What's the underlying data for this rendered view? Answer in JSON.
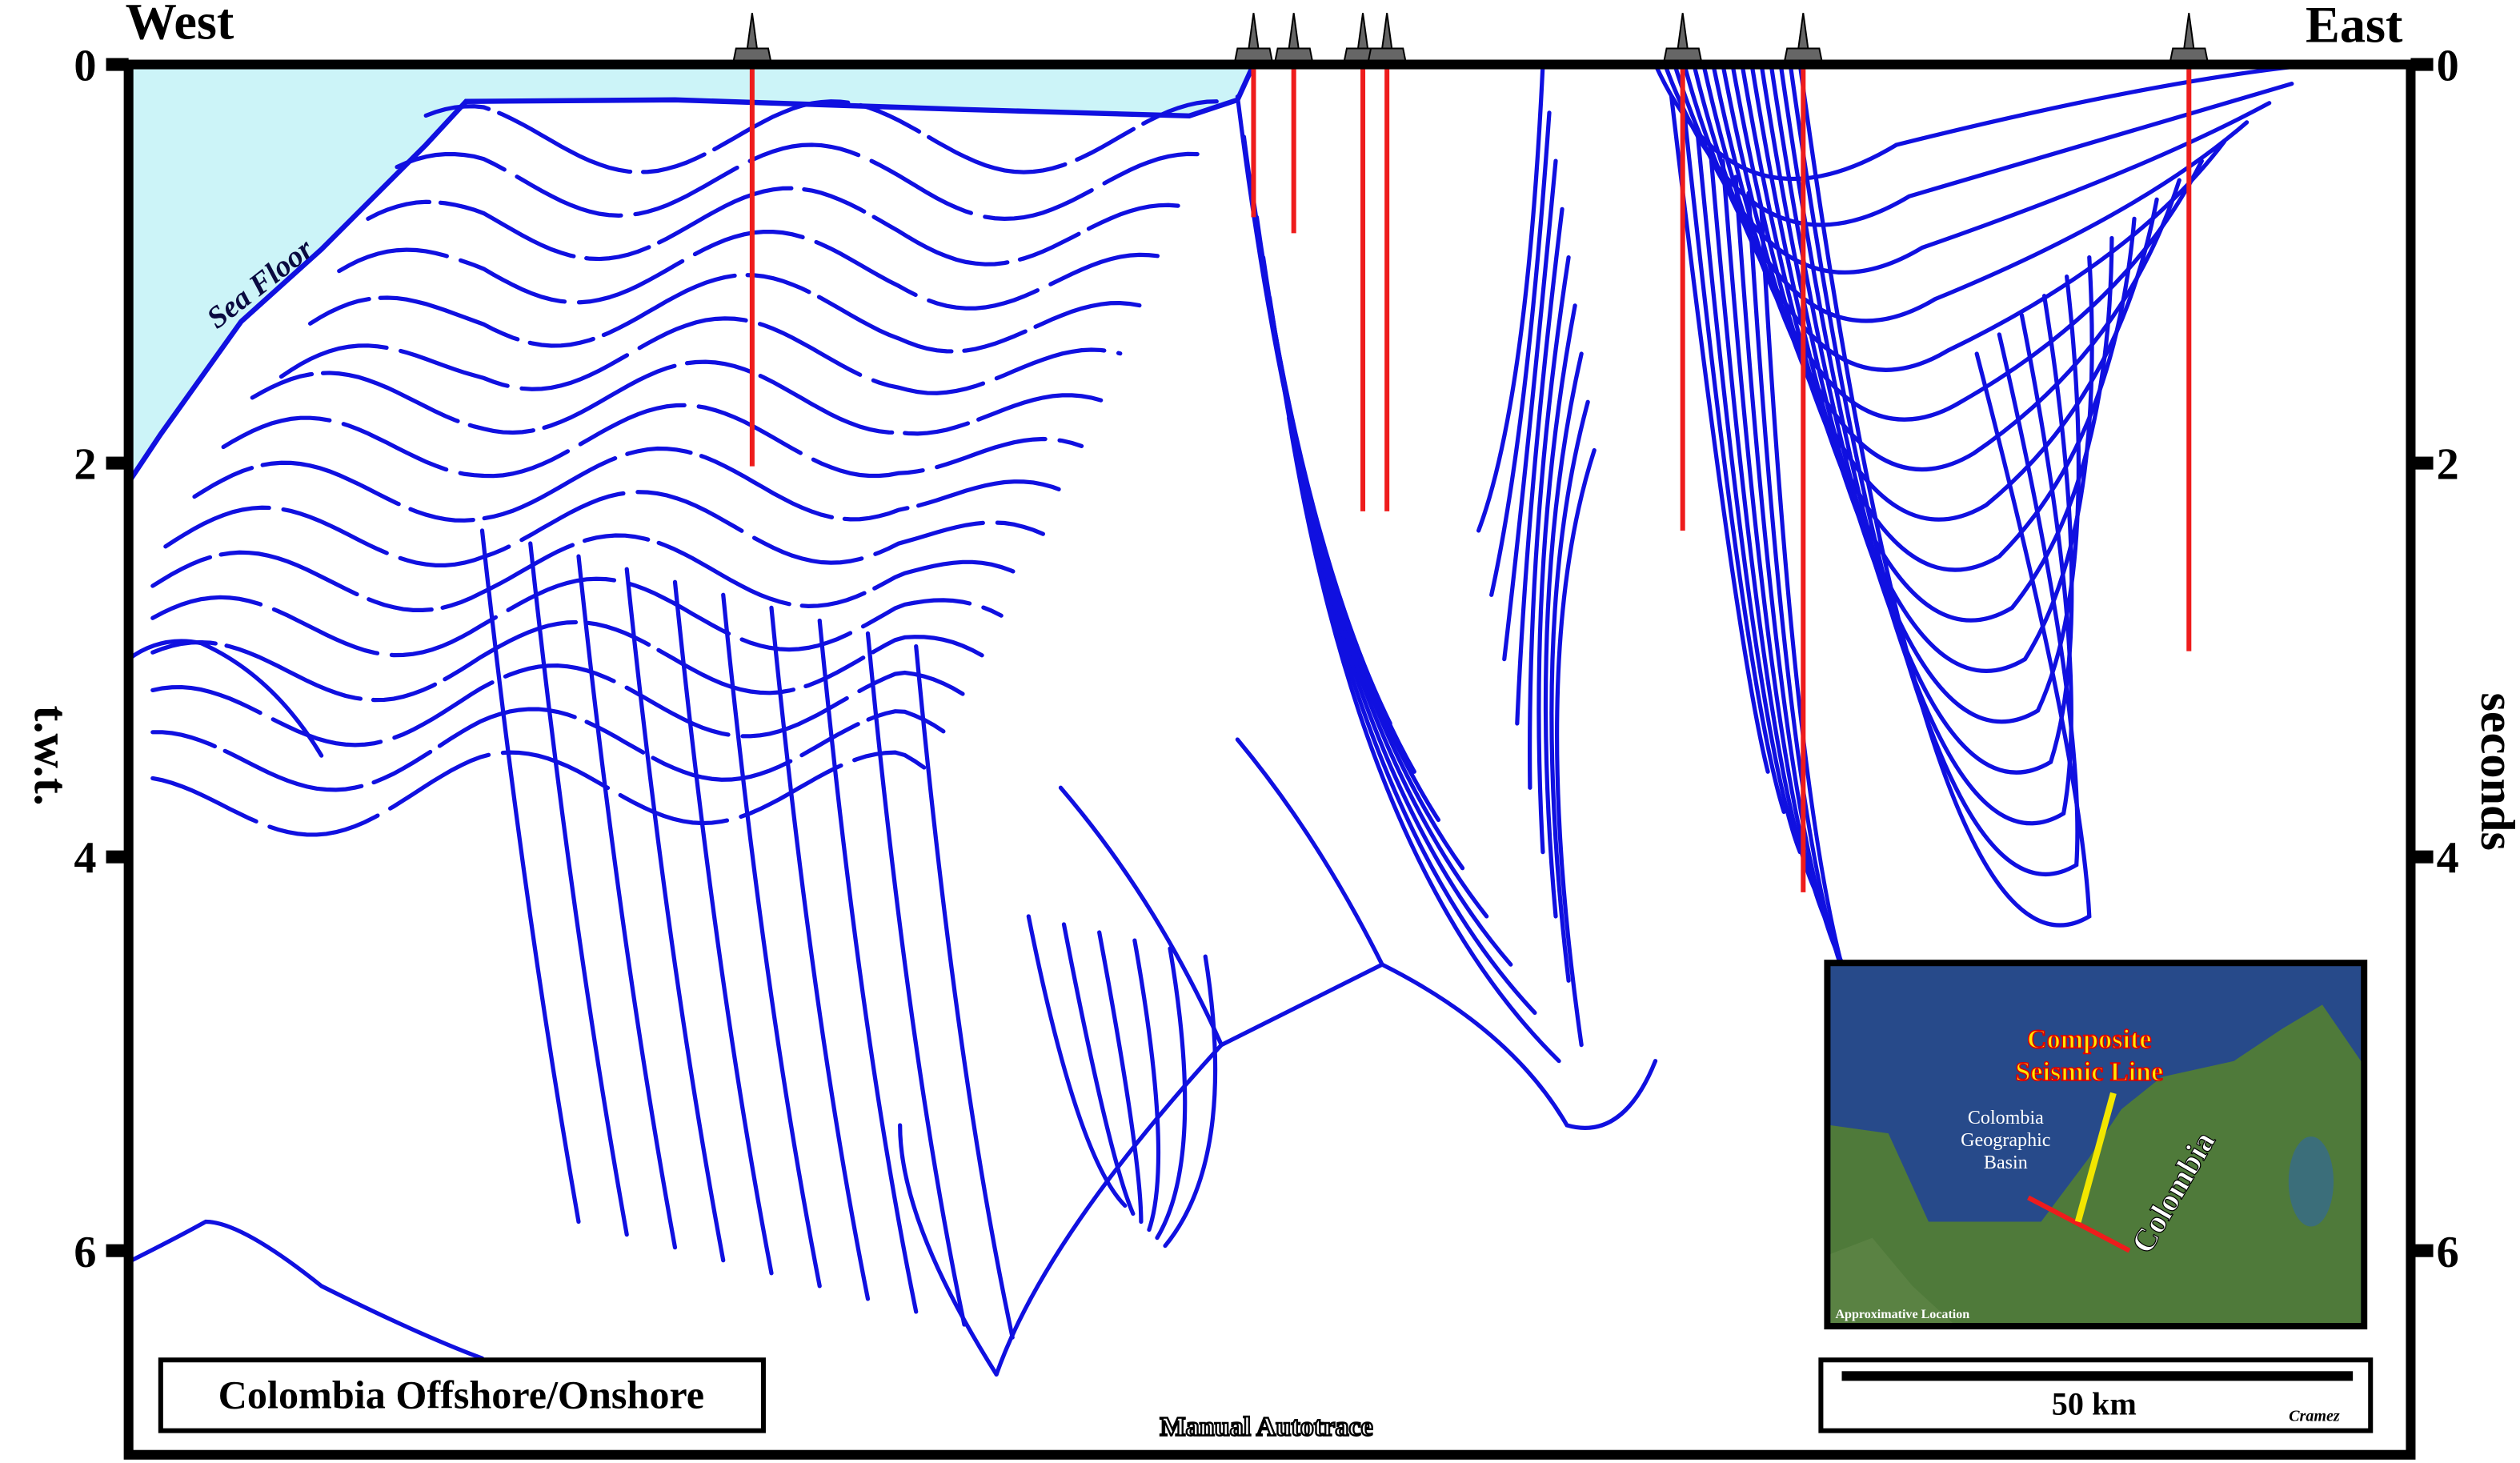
{
  "header": {
    "west": "West",
    "east": "East"
  },
  "axes": {
    "left_label": "t.w.t.",
    "right_label": "seconds",
    "left_ticks": [
      0,
      2,
      4,
      6
    ],
    "right_ticks": [
      0,
      2,
      4,
      6
    ]
  },
  "labels": {
    "sea_floor": "Sea Floor",
    "title": "Colombia Offshore/Onshore",
    "method": "Manual Autotrace",
    "scale": "50 km",
    "credit": "Cramez"
  },
  "inset": {
    "line_label": [
      "Composite",
      "Seismic Line"
    ],
    "basin": [
      "Colombia",
      "Geographic",
      "Basin"
    ],
    "country": "Colombia",
    "note": "Approximative Location"
  }
}
